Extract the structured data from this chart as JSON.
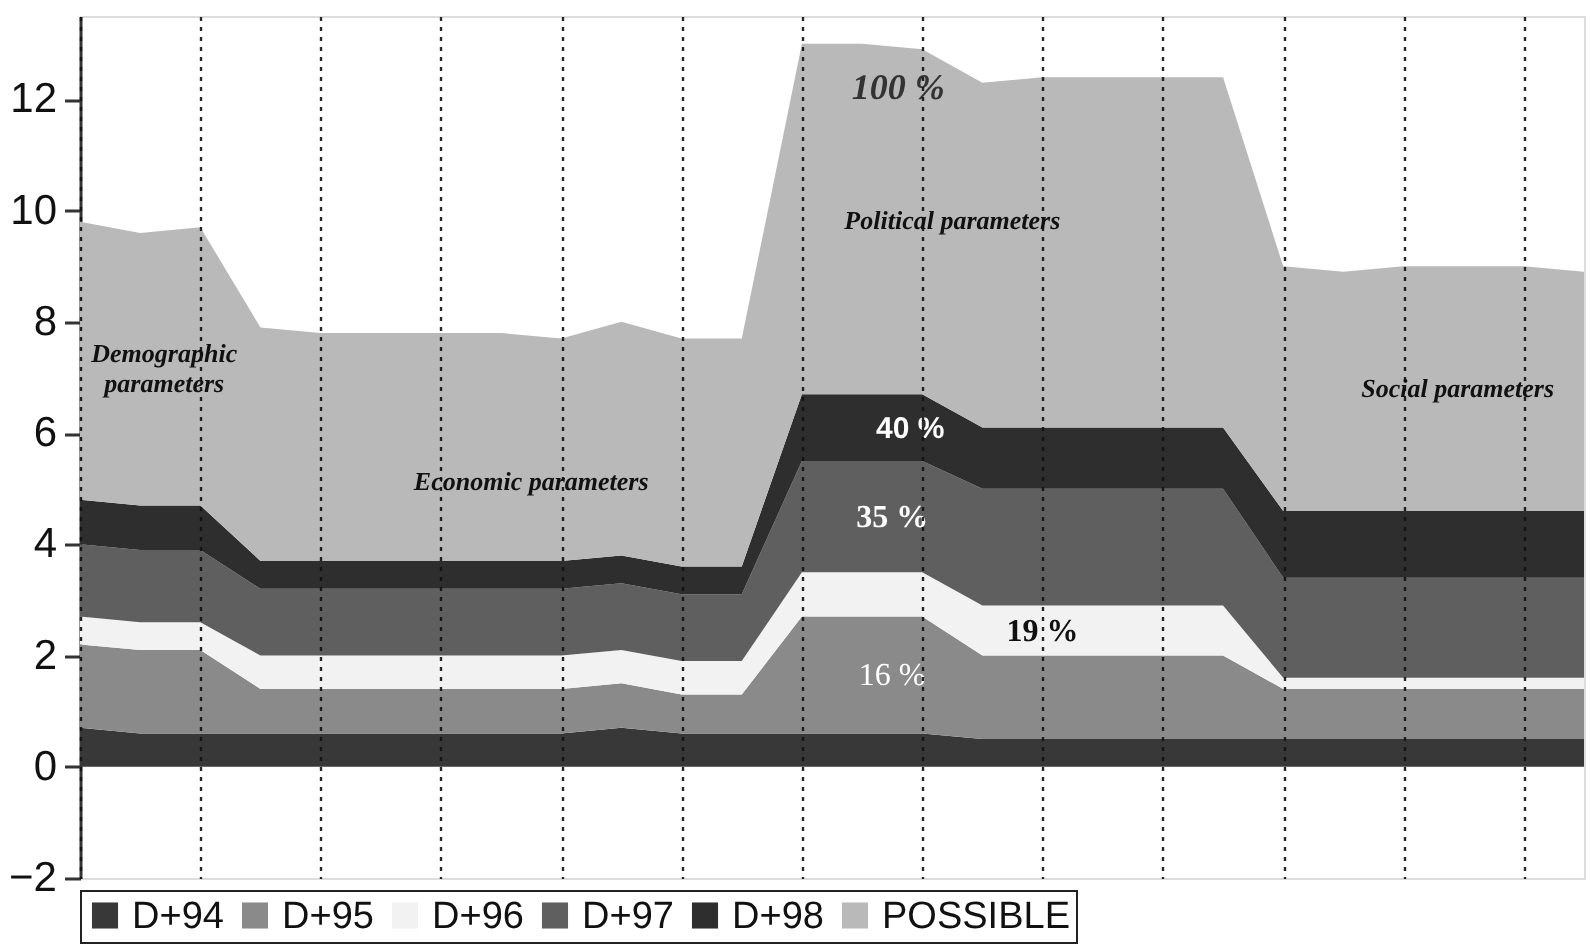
{
  "chart_data": {
    "type": "area",
    "stacked": true,
    "categories": [
      null,
      null,
      null,
      null,
      null,
      null,
      null,
      null,
      null,
      null,
      null,
      null,
      null,
      null,
      null,
      null,
      null,
      null,
      null,
      null,
      null,
      null,
      null,
      null,
      null,
      null
    ],
    "series": [
      {
        "name": "D+94",
        "color": "#383838",
        "values": [
          0.7,
          0.6,
          0.6,
          0.6,
          0.6,
          0.6,
          0.6,
          0.6,
          0.6,
          0.7,
          0.6,
          0.6,
          0.6,
          0.6,
          0.6,
          0.5,
          0.5,
          0.5,
          0.5,
          0.5,
          0.5,
          0.5,
          0.5,
          0.5,
          0.5,
          0.5
        ]
      },
      {
        "name": "D+95",
        "color": "#8a8a8a",
        "values": [
          1.5,
          1.5,
          1.5,
          0.8,
          0.8,
          0.8,
          0.8,
          0.8,
          0.8,
          0.8,
          0.7,
          0.7,
          2.1,
          2.1,
          2.1,
          1.5,
          1.5,
          1.5,
          1.5,
          1.5,
          0.9,
          0.9,
          0.9,
          0.9,
          0.9,
          0.9
        ]
      },
      {
        "name": "D+96",
        "color": "#f2f2f2",
        "values": [
          0.5,
          0.5,
          0.5,
          0.6,
          0.6,
          0.6,
          0.6,
          0.6,
          0.6,
          0.6,
          0.6,
          0.6,
          0.8,
          0.8,
          0.8,
          0.9,
          0.9,
          0.9,
          0.9,
          0.9,
          0.2,
          0.2,
          0.2,
          0.2,
          0.2,
          0.2
        ]
      },
      {
        "name": "D+97",
        "color": "#5f5f5f",
        "values": [
          1.3,
          1.3,
          1.3,
          1.2,
          1.2,
          1.2,
          1.2,
          1.2,
          1.2,
          1.2,
          1.2,
          1.2,
          2.0,
          2.0,
          2.0,
          2.1,
          2.1,
          2.1,
          2.1,
          2.1,
          1.8,
          1.8,
          1.8,
          1.8,
          1.8,
          1.8
        ]
      },
      {
        "name": "D+98",
        "color": "#2e2e2e",
        "values": [
          0.8,
          0.8,
          0.8,
          0.5,
          0.5,
          0.5,
          0.5,
          0.5,
          0.5,
          0.5,
          0.5,
          0.5,
          1.2,
          1.2,
          1.2,
          1.1,
          1.1,
          1.1,
          1.1,
          1.1,
          1.2,
          1.2,
          1.2,
          1.2,
          1.2,
          1.2
        ]
      },
      {
        "name": "POSSIBLE",
        "color": "#b9b9b9",
        "values": [
          5.0,
          4.9,
          5.0,
          4.2,
          4.1,
          4.1,
          4.1,
          4.1,
          4.0,
          4.2,
          4.1,
          4.1,
          6.3,
          6.3,
          6.2,
          6.2,
          6.3,
          6.3,
          6.3,
          6.3,
          4.4,
          4.3,
          4.4,
          4.4,
          4.4,
          4.3
        ]
      }
    ],
    "ylim": [
      -2,
      13.5
    ],
    "yticks": [
      -2,
      0,
      2,
      4,
      6,
      8,
      10,
      12
    ],
    "grid": "x",
    "legend": "bottom",
    "tick_labels": "y",
    "annotations": [
      "Demographic parameters",
      "Economic parameters",
      "Political parameters",
      "Social parameters",
      "100 %",
      "40 %",
      "35 %",
      "19 %",
      "16 %"
    ]
  }
}
